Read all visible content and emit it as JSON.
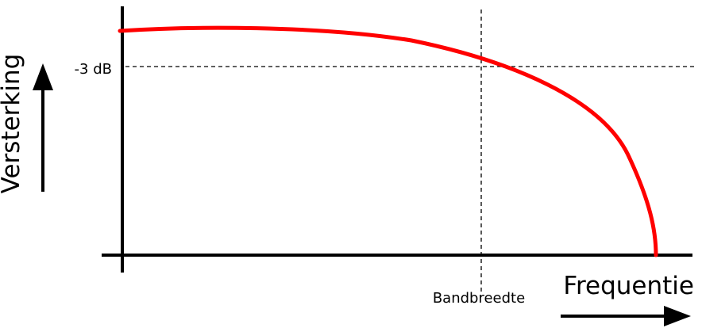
{
  "chart_data": {
    "type": "line",
    "xlabel": "Frequentie",
    "ylabel": "Versterking",
    "annotations": {
      "gain_marker": "-3 dB",
      "frequency_marker": "Bandbreedte"
    },
    "grid": false,
    "series": [
      {
        "color": "#ff0000",
        "shape": "low-pass roll-off: flat gain, crossing the -3 dB level at the bandwidth frequency, then falling steeply to zero"
      }
    ]
  },
  "colors": {
    "axis": "#000000",
    "curve": "#ff0000",
    "guide": "#000000"
  }
}
